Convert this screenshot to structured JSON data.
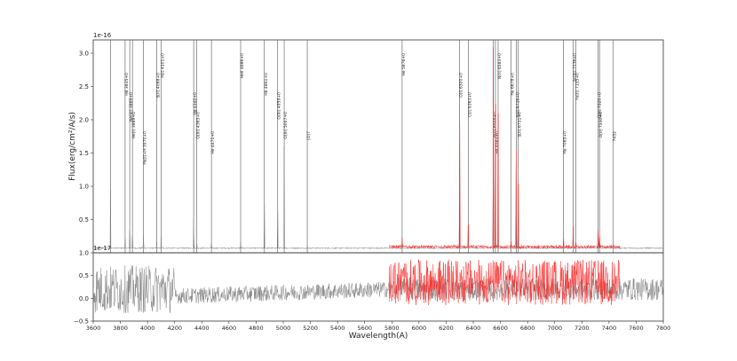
{
  "chart_data": [
    {
      "type": "line",
      "panel": "top",
      "ylabel": "Flux(erg/cm²/A/s)",
      "exponent_label": "1e-16",
      "xlim": [
        3600,
        7800
      ],
      "ylim": [
        0,
        3.2
      ],
      "yticks": [
        0.5,
        1.0,
        1.5,
        2.0,
        2.5,
        3.0
      ],
      "ytick_labels": [
        "0.5",
        "1.0",
        "1.5",
        "2.0",
        "2.5",
        "3.0"
      ],
      "series": [
        {
          "color": "#808080",
          "x_range": [
            3600,
            7800
          ]
        },
        {
          "color": "#ff2a2a",
          "x_range": [
            5780,
            7480
          ]
        }
      ],
      "line_markers": [
        {
          "wavelength": 3727,
          "label": ""
        },
        {
          "wavelength": 3835,
          "label": "H8 3835+0"
        },
        {
          "wavelength": 3869,
          "label": "Ne[III] 3869+0"
        },
        {
          "wavelength": 3889,
          "label": "He[I] 3889+0"
        },
        {
          "wavelength": 3970,
          "label": "He[I]+H 3970+0"
        },
        {
          "wavelength": 4101,
          "label": "H[I] 4101+0"
        },
        {
          "wavelength": 4068,
          "label": "S[II] 4068+0"
        },
        {
          "wavelength": 4340,
          "label": "Hg 4340+0"
        },
        {
          "wavelength": 4363,
          "label": "O[III] 4363+0"
        },
        {
          "wavelength": 4471,
          "label": "He 4471+0"
        },
        {
          "wavelength": 4686,
          "label": "HeII 4686+0"
        },
        {
          "wavelength": 4861,
          "label": "Hb 4861+0"
        },
        {
          "wavelength": 4959,
          "label": "O[III] 4959+0"
        },
        {
          "wavelength": 5007,
          "label": "O[III] 5007+0"
        },
        {
          "wavelength": 5177,
          "label": "[O]7"
        },
        {
          "wavelength": 5876,
          "label": "He 5876+0"
        },
        {
          "wavelength": 6300,
          "label": "O[I] 6300+0"
        },
        {
          "wavelength": 6363,
          "label": "O[I] 6363+0"
        },
        {
          "wavelength": 6548,
          "label": "N[II] 6548+0"
        },
        {
          "wavelength": 6563,
          "label": "Ha 6563+0"
        },
        {
          "wavelength": 6583,
          "label": "N[II] 6583+0"
        },
        {
          "wavelength": 6678,
          "label": "He 6678+0"
        },
        {
          "wavelength": 6716,
          "label": "S[II] 6716+0"
        },
        {
          "wavelength": 6731,
          "label": "S[II] 6731+0"
        },
        {
          "wavelength": 7065,
          "label": "He 7065+0"
        },
        {
          "wavelength": 7136,
          "label": "Ar[III] 7136+0"
        },
        {
          "wavelength": 7155,
          "label": "Fe[II] 7155+0"
        },
        {
          "wavelength": 7320,
          "label": "O[II] 7320+0"
        },
        {
          "wavelength": 7330,
          "label": "O[II] 7330+0"
        },
        {
          "wavelength": 7432,
          "label": "7432"
        }
      ]
    },
    {
      "type": "line",
      "panel": "bottom",
      "xlabel": "Wavelength(A)",
      "exponent_label": "1e-17",
      "xlim": [
        3600,
        7800
      ],
      "ylim": [
        -0.5,
        1.0
      ],
      "yticks": [
        -0.5,
        0.0,
        0.5,
        1.0
      ],
      "ytick_labels": [
        "−0.5",
        "0.0",
        "0.5",
        "1.0"
      ],
      "xticks": [
        3600,
        3800,
        4000,
        4200,
        4400,
        4600,
        4800,
        5000,
        5200,
        5400,
        5600,
        5800,
        6000,
        6200,
        6400,
        6600,
        6800,
        7000,
        7200,
        7400,
        7600,
        7800
      ],
      "xtick_labels": [
        "3600",
        "3800",
        "4000",
        "4200",
        "4400",
        "4600",
        "4800",
        "5000",
        "5200",
        "5400",
        "5600",
        "5800",
        "6000",
        "6200",
        "6400",
        "6600",
        "6800",
        "7000",
        "7200",
        "7400",
        "7600",
        "7800"
      ],
      "series": [
        {
          "color": "#808080",
          "x_range": [
            3600,
            7800
          ]
        },
        {
          "color": "#ff2a2a",
          "x_range": [
            5780,
            7480
          ]
        }
      ]
    }
  ],
  "colors": {
    "spectrum": "#808080",
    "red_spectrum": "#ff2a2a",
    "marker_line": "#555555",
    "axis": "#333333"
  }
}
